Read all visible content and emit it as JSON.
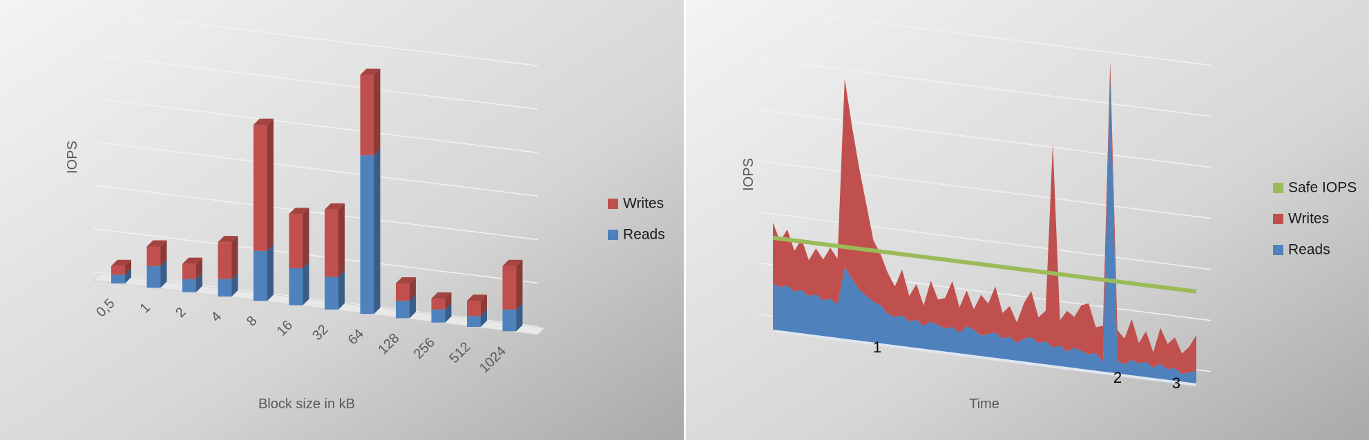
{
  "chart_data": [
    {
      "type": "bar3d",
      "x_label": "Block size in kB",
      "y_label": "IOPS",
      "categories": [
        "0,5",
        "1",
        "2",
        "4",
        "8",
        "16",
        "32",
        "64",
        "128",
        "256",
        "512",
        "1024"
      ],
      "series": [
        {
          "name": "Reads",
          "color": "#4f81bd",
          "values": [
            0.2,
            0.5,
            0.3,
            0.4,
            1.15,
            0.85,
            0.75,
            3.65,
            0.4,
            0.3,
            0.25,
            0.5
          ]
        },
        {
          "name": "Writes",
          "color": "#c0504d",
          "values": [
            0.2,
            0.45,
            0.35,
            0.85,
            2.9,
            1.25,
            1.55,
            1.85,
            0.4,
            0.25,
            0.35,
            1.0
          ]
        }
      ],
      "ylim": [
        0,
        6
      ],
      "yticks": [
        0,
        1,
        2,
        3,
        4,
        5,
        6
      ],
      "grid": true
    },
    {
      "type": "area3d",
      "x_label": "Time",
      "y_label": "IOPS",
      "annotations": [
        "1",
        "2",
        "3"
      ],
      "series": [
        {
          "name": "Reads",
          "color": "#4f81bd",
          "values": [
            0.9,
            0.85,
            0.9,
            0.8,
            0.85,
            0.75,
            0.8,
            0.7,
            0.75,
            0.65,
            1.4,
            1.2,
            1.0,
            0.9,
            0.8,
            0.75,
            0.6,
            0.55,
            0.6,
            0.5,
            0.55,
            0.45,
            0.55,
            0.5,
            0.45,
            0.5,
            0.4,
            0.55,
            0.5,
            0.4,
            0.45,
            0.5,
            0.4,
            0.45,
            0.35,
            0.45,
            0.5,
            0.4,
            0.45,
            0.35,
            0.4,
            0.3,
            0.4,
            0.35,
            0.3,
            0.35,
            0.2,
            5.8,
            0.25,
            0.2,
            0.3,
            0.25,
            0.3,
            0.2,
            0.3,
            0.2,
            0.25,
            0.15,
            0.2,
            0.25
          ]
        },
        {
          "name": "Writes",
          "color": "#c0504d",
          "values": [
            1.2,
            0.9,
            1.1,
            0.8,
            1.0,
            0.7,
            0.9,
            0.8,
            1.0,
            0.9,
            3.7,
            3.0,
            2.4,
            1.8,
            1.2,
            1.0,
            0.8,
            0.6,
            0.9,
            0.5,
            0.7,
            0.4,
            0.8,
            0.5,
            0.6,
            0.9,
            0.5,
            0.7,
            0.4,
            0.8,
            0.6,
            0.9,
            0.5,
            0.6,
            0.4,
            0.7,
            0.9,
            0.5,
            0.6,
            4.0,
            0.5,
            0.8,
            0.6,
            0.9,
            1.0,
            0.5,
            0.7,
            0.3,
            0.6,
            0.5,
            0.8,
            0.4,
            0.6,
            0.3,
            0.7,
            0.5,
            0.6,
            0.4,
            0.5,
            0.7
          ]
        },
        {
          "name": "Safe IOPS",
          "color": "#9bbb59",
          "values": [
            1.8,
            1.8,
            1.8,
            1.8,
            1.8,
            1.8,
            1.8,
            1.8,
            1.8,
            1.8,
            1.8,
            1.8,
            1.8,
            1.8,
            1.8,
            1.8,
            1.8,
            1.8,
            1.8,
            1.8,
            1.8,
            1.8,
            1.8,
            1.8,
            1.8,
            1.8,
            1.8,
            1.8,
            1.8,
            1.8,
            1.8,
            1.8,
            1.8,
            1.8,
            1.8,
            1.8,
            1.8,
            1.8,
            1.8,
            1.8,
            1.8,
            1.8,
            1.8,
            1.8,
            1.8,
            1.8,
            1.8,
            1.8,
            1.8,
            1.8,
            1.8,
            1.8,
            1.8,
            1.8,
            1.8,
            1.8,
            1.8,
            1.8,
            1.8,
            1.8
          ]
        }
      ],
      "ylim": [
        0,
        6
      ],
      "yticks": [
        0,
        1,
        2,
        3,
        4,
        5,
        6
      ],
      "grid": true
    }
  ]
}
